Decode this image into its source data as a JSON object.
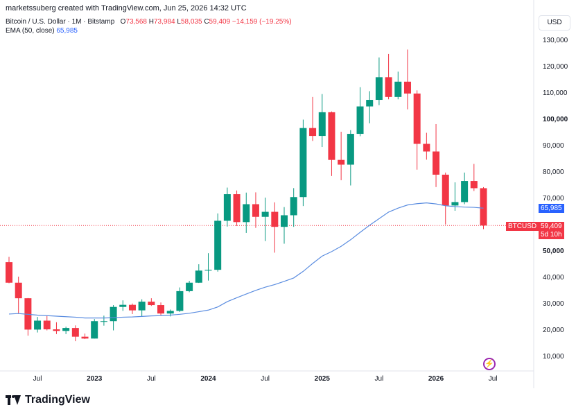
{
  "header": {
    "attribution": "marketssuberg created with TradingView.com, Jun 25, 2026 14:32 UTC"
  },
  "legend": {
    "symbol": "Bitcoin / U.S. Dollar · 1M · Bitstamp",
    "open_label": "O",
    "open": "73,568",
    "high_label": "H",
    "high": "73,984",
    "low_label": "L",
    "low": "58,035",
    "close_label": "C",
    "close": "59,409",
    "change": "−14,159 (−19.25%)",
    "ema_label": "EMA (50, close)",
    "ema_value": "65,985"
  },
  "currency": "USD",
  "price_labels": {
    "ema": "65,985",
    "symbol": "BTCUSD",
    "last": "59,409",
    "countdown": "5d 10h"
  },
  "colors": {
    "up": "#089981",
    "down": "#f23645",
    "ema": "#5b8de0",
    "ema_label_bg": "#2962ff",
    "grid": "#f0f3fa",
    "axis_text": "#131722"
  },
  "footer": {
    "brand": "TradingView"
  },
  "icons": {
    "snapshot": "lightning-circle-icon"
  },
  "chart_data": {
    "type": "candlestick",
    "title": "",
    "xlabel": "",
    "ylabel": "",
    "ylim": [
      0,
      135000
    ],
    "y_ticks": [
      10000,
      20000,
      30000,
      40000,
      50000,
      60000,
      70000,
      80000,
      90000,
      100000,
      110000,
      120000,
      130000
    ],
    "y_tick_labels": [
      "10,000",
      "20,000",
      "30,000",
      "40,000",
      "50,000",
      "60,000",
      "70,000",
      "80,000",
      "90,000",
      "100,000",
      "110,000",
      "120,000",
      "130,000"
    ],
    "bold_y_ticks": [
      50000,
      100000
    ],
    "x_ticks": [
      {
        "label": "Jul",
        "index": 3,
        "bold": false
      },
      {
        "label": "2023",
        "index": 9,
        "bold": true
      },
      {
        "label": "Jul",
        "index": 15,
        "bold": false
      },
      {
        "label": "2024",
        "index": 21,
        "bold": true
      },
      {
        "label": "Jul",
        "index": 27,
        "bold": false
      },
      {
        "label": "2025",
        "index": 33,
        "bold": true
      },
      {
        "label": "Jul",
        "index": 39,
        "bold": false
      },
      {
        "label": "2026",
        "index": 45,
        "bold": true
      },
      {
        "label": "Jul",
        "index": 51,
        "bold": false
      }
    ],
    "candles": [
      {
        "date": "2022-04",
        "o": 45500,
        "h": 47500,
        "l": 37500,
        "c": 37700
      },
      {
        "date": "2022-05",
        "o": 37700,
        "h": 40000,
        "l": 26000,
        "c": 31800
      },
      {
        "date": "2022-06",
        "o": 31800,
        "h": 31900,
        "l": 17600,
        "c": 19900
      },
      {
        "date": "2022-07",
        "o": 19900,
        "h": 24700,
        "l": 18800,
        "c": 23300
      },
      {
        "date": "2022-08",
        "o": 23300,
        "h": 25200,
        "l": 19600,
        "c": 20000
      },
      {
        "date": "2022-09",
        "o": 20000,
        "h": 22700,
        "l": 18200,
        "c": 19400
      },
      {
        "date": "2022-10",
        "o": 19400,
        "h": 21000,
        "l": 18200,
        "c": 20500
      },
      {
        "date": "2022-11",
        "o": 20500,
        "h": 21500,
        "l": 15500,
        "c": 17200
      },
      {
        "date": "2022-12",
        "o": 17200,
        "h": 18400,
        "l": 16300,
        "c": 16500
      },
      {
        "date": "2023-01",
        "o": 16500,
        "h": 23900,
        "l": 16500,
        "c": 23100
      },
      {
        "date": "2023-02",
        "o": 23100,
        "h": 25200,
        "l": 21400,
        "c": 23100
      },
      {
        "date": "2023-03",
        "o": 23100,
        "h": 29200,
        "l": 19600,
        "c": 28500
      },
      {
        "date": "2023-04",
        "o": 28500,
        "h": 31000,
        "l": 27000,
        "c": 29300
      },
      {
        "date": "2023-05",
        "o": 29300,
        "h": 29800,
        "l": 25800,
        "c": 27200
      },
      {
        "date": "2023-06",
        "o": 27200,
        "h": 31400,
        "l": 24800,
        "c": 30500
      },
      {
        "date": "2023-07",
        "o": 30500,
        "h": 31800,
        "l": 28900,
        "c": 29200
      },
      {
        "date": "2023-08",
        "o": 29200,
        "h": 30200,
        "l": 25400,
        "c": 26000
      },
      {
        "date": "2023-09",
        "o": 26000,
        "h": 27500,
        "l": 24900,
        "c": 27000
      },
      {
        "date": "2023-10",
        "o": 27000,
        "h": 35900,
        "l": 26600,
        "c": 34500
      },
      {
        "date": "2023-11",
        "o": 34500,
        "h": 38400,
        "l": 34100,
        "c": 37700
      },
      {
        "date": "2023-12",
        "o": 37700,
        "h": 44700,
        "l": 37600,
        "c": 42300
      },
      {
        "date": "2024-01",
        "o": 42300,
        "h": 48900,
        "l": 38500,
        "c": 42600
      },
      {
        "date": "2024-02",
        "o": 42600,
        "h": 64000,
        "l": 41900,
        "c": 61200
      },
      {
        "date": "2024-03",
        "o": 61200,
        "h": 73800,
        "l": 59000,
        "c": 71300
      },
      {
        "date": "2024-04",
        "o": 71300,
        "h": 72700,
        "l": 59200,
        "c": 60700
      },
      {
        "date": "2024-05",
        "o": 60700,
        "h": 71900,
        "l": 56600,
        "c": 67500
      },
      {
        "date": "2024-06",
        "o": 67500,
        "h": 72000,
        "l": 58500,
        "c": 62700
      },
      {
        "date": "2024-07",
        "o": 62700,
        "h": 70000,
        "l": 53500,
        "c": 64600
      },
      {
        "date": "2024-08",
        "o": 64600,
        "h": 68200,
        "l": 49100,
        "c": 58900
      },
      {
        "date": "2024-09",
        "o": 58900,
        "h": 66400,
        "l": 52500,
        "c": 63300
      },
      {
        "date": "2024-10",
        "o": 63300,
        "h": 73600,
        "l": 58900,
        "c": 70200
      },
      {
        "date": "2024-11",
        "o": 70200,
        "h": 99600,
        "l": 66800,
        "c": 96400
      },
      {
        "date": "2024-12",
        "o": 96400,
        "h": 108200,
        "l": 91500,
        "c": 93400
      },
      {
        "date": "2025-01",
        "o": 93400,
        "h": 109300,
        "l": 89200,
        "c": 102400
      },
      {
        "date": "2025-02",
        "o": 102400,
        "h": 102700,
        "l": 78200,
        "c": 84300
      },
      {
        "date": "2025-03",
        "o": 84300,
        "h": 95000,
        "l": 76600,
        "c": 82500
      },
      {
        "date": "2025-04",
        "o": 82500,
        "h": 95600,
        "l": 74600,
        "c": 94200
      },
      {
        "date": "2025-05",
        "o": 94200,
        "h": 111900,
        "l": 93300,
        "c": 104600
      },
      {
        "date": "2025-06",
        "o": 104600,
        "h": 110400,
        "l": 98200,
        "c": 107100
      },
      {
        "date": "2025-07",
        "o": 107100,
        "h": 123200,
        "l": 105100,
        "c": 115700
      },
      {
        "date": "2025-08",
        "o": 115700,
        "h": 124500,
        "l": 107300,
        "c": 108200
      },
      {
        "date": "2025-09",
        "o": 108200,
        "h": 117800,
        "l": 107300,
        "c": 114000
      },
      {
        "date": "2025-10",
        "o": 114000,
        "h": 126200,
        "l": 103500,
        "c": 109500
      },
      {
        "date": "2025-11",
        "o": 109500,
        "h": 110700,
        "l": 80600,
        "c": 90400
      },
      {
        "date": "2025-12",
        "o": 90400,
        "h": 94600,
        "l": 84400,
        "c": 87500
      },
      {
        "date": "2026-01",
        "o": 87500,
        "h": 97900,
        "l": 74000,
        "c": 78700
      },
      {
        "date": "2026-02",
        "o": 78700,
        "h": 79500,
        "l": 59800,
        "c": 67000
      },
      {
        "date": "2026-03",
        "o": 67000,
        "h": 75800,
        "l": 65000,
        "c": 68300
      },
      {
        "date": "2026-04",
        "o": 68300,
        "h": 79500,
        "l": 67500,
        "c": 76300
      },
      {
        "date": "2026-05",
        "o": 76300,
        "h": 82800,
        "l": 72500,
        "c": 73568
      },
      {
        "date": "2026-06",
        "o": 73568,
        "h": 73984,
        "l": 58035,
        "c": 59409
      }
    ],
    "ema": {
      "name": "EMA (50, close)",
      "values": [
        25800,
        26000,
        25700,
        25400,
        25200,
        25000,
        24800,
        24600,
        24300,
        24300,
        24300,
        24400,
        24600,
        24700,
        24900,
        25100,
        25200,
        25400,
        25700,
        26100,
        26700,
        27300,
        28500,
        30500,
        32000,
        33400,
        34800,
        36000,
        37000,
        38200,
        39500,
        42000,
        45000,
        47800,
        49500,
        51500,
        54000,
        56800,
        59500,
        62000,
        64500,
        66000,
        67200,
        67700,
        68000,
        67600,
        66900,
        66600,
        66400,
        66300,
        65985
      ]
    },
    "last_price_line": 59409
  }
}
